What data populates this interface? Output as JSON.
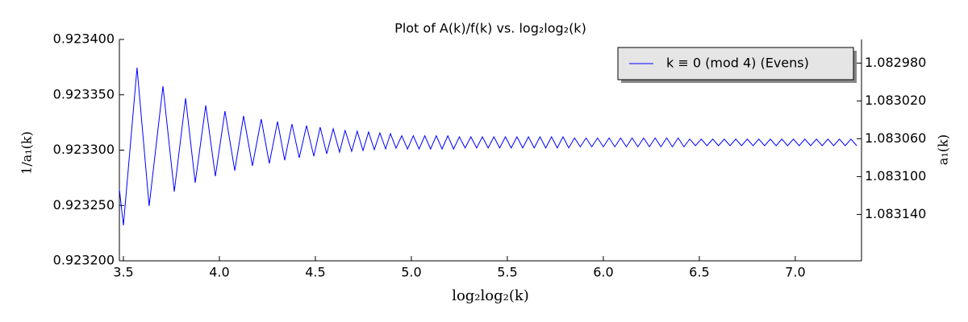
{
  "chart_data": {
    "type": "line",
    "title": "Plot of A(k)/f(k) vs. log₂log₂(k)",
    "x_label": "log₂log₂(k)",
    "y_label": "1/a₁(k)",
    "y2_label": "a₁(k)",
    "legend": "upper right",
    "grid": false,
    "xlim": [
      3.479,
      7.345
    ],
    "xticks": [
      3.5,
      {
        "value": 4.0,
        "label": "4.0"
      },
      4.5,
      {
        "value": 5.0,
        "label": "5.0"
      },
      5.5,
      {
        "value": 6.0,
        "label": "6.0"
      },
      6.5,
      {
        "value": 7.0,
        "label": "7.0"
      }
    ],
    "ylim": [
      0.9232,
      0.9234
    ],
    "yticks": [
      {
        "value": 0.9232,
        "label": "0.923200"
      },
      {
        "value": 0.92325,
        "label": "0.923250"
      },
      {
        "value": 0.9233,
        "label": "0.923300"
      },
      {
        "value": 0.92335,
        "label": "0.923350"
      },
      {
        "value": 0.9234,
        "label": "0.923400"
      }
    ],
    "y2lim": [
      1.083189,
      1.082955
    ],
    "y2ticks": [
      {
        "value": 1.08298,
        "label": "1.082980"
      },
      {
        "value": 1.08302,
        "label": "1.083020"
      },
      {
        "value": 1.08306,
        "label": "1.083060"
      },
      {
        "value": 1.0831,
        "label": "1.083100"
      },
      {
        "value": 1.08314,
        "label": "1.083140"
      }
    ],
    "x": [
      3.479,
      3.5,
      3.571,
      3.634,
      3.706,
      3.765,
      3.824,
      3.874,
      3.929,
      3.979,
      4.029,
      4.08,
      4.126,
      4.172,
      4.218,
      4.26,
      4.303,
      4.34,
      4.378,
      4.416,
      4.454,
      4.492,
      4.525,
      4.559,
      4.593,
      4.626,
      4.655,
      4.689,
      4.718,
      4.748,
      4.777,
      4.807,
      4.836,
      4.866,
      4.891,
      4.92,
      4.95,
      4.98,
      5.01,
      5.04,
      5.07,
      5.1,
      5.13,
      5.16,
      5.19,
      5.22,
      5.25,
      5.28,
      5.31,
      5.34,
      5.37,
      5.4,
      5.43,
      5.46,
      5.49,
      5.52,
      5.55,
      5.58,
      5.61,
      5.64,
      5.67,
      5.7,
      5.73,
      5.76,
      5.79,
      5.82,
      5.85,
      5.88,
      5.91,
      5.94,
      5.97,
      6.0,
      6.03,
      6.06,
      6.09,
      6.12,
      6.15,
      6.18,
      6.21,
      6.24,
      6.27,
      6.3,
      6.33,
      6.36,
      6.39,
      6.42,
      6.45,
      6.48,
      6.51,
      6.54,
      6.57,
      6.6,
      6.63,
      6.66,
      6.69,
      6.72,
      6.75,
      6.78,
      6.81,
      6.84,
      6.87,
      6.9,
      6.93,
      6.96,
      6.99,
      7.02,
      7.05,
      7.08,
      7.11,
      7.14,
      7.17,
      7.2,
      7.23,
      7.26,
      7.29,
      7.32
    ],
    "series": [
      {
        "name": "k ≡ 0 (mod 4) (Evens)",
        "color": "#0000ff",
        "values": [
          0.9232647,
          0.923232,
          0.9233745,
          0.9232495,
          0.9233578,
          0.9232625,
          0.9233469,
          0.9232705,
          0.9233404,
          0.9232764,
          0.9233353,
          0.9232815,
          0.9233309,
          0.9232858,
          0.923328,
          0.923288,
          0.9233258,
          0.9232909,
          0.9233236,
          0.9232931,
          0.9233222,
          0.9232945,
          0.9233207,
          0.9232967,
          0.9233193,
          0.9232982,
          0.9233178,
          0.9232989,
          0.9233171,
          0.9232996,
          0.9233164,
          0.9233004,
          0.9233156,
          0.9233011,
          0.9233149,
          0.9233018,
          0.923313,
          0.923301,
          0.923313,
          0.923301,
          0.923313,
          0.923301,
          0.923313,
          0.923301,
          0.923313,
          0.923301,
          0.923312,
          0.923302,
          0.923312,
          0.923302,
          0.923312,
          0.923302,
          0.923312,
          0.923302,
          0.923312,
          0.923302,
          0.923312,
          0.923302,
          0.923312,
          0.923302,
          0.923312,
          0.923302,
          0.923312,
          0.923302,
          0.923312,
          0.923302,
          0.923311,
          0.923303,
          0.923311,
          0.923303,
          0.923311,
          0.923303,
          0.923311,
          0.923303,
          0.923311,
          0.923303,
          0.923311,
          0.923303,
          0.923311,
          0.923303,
          0.923311,
          0.923303,
          0.923311,
          0.923303,
          0.923311,
          0.923303,
          0.92331,
          0.923304,
          0.92331,
          0.923304,
          0.92331,
          0.923304,
          0.92331,
          0.923304,
          0.92331,
          0.923304,
          0.92331,
          0.923304,
          0.92331,
          0.923304,
          0.92331,
          0.923304,
          0.92331,
          0.923304,
          0.92331,
          0.923304,
          0.92331,
          0.923304,
          0.92331,
          0.923304,
          0.92331,
          0.923304,
          0.92331,
          0.923304,
          0.92331,
          0.923304
        ]
      }
    ]
  }
}
